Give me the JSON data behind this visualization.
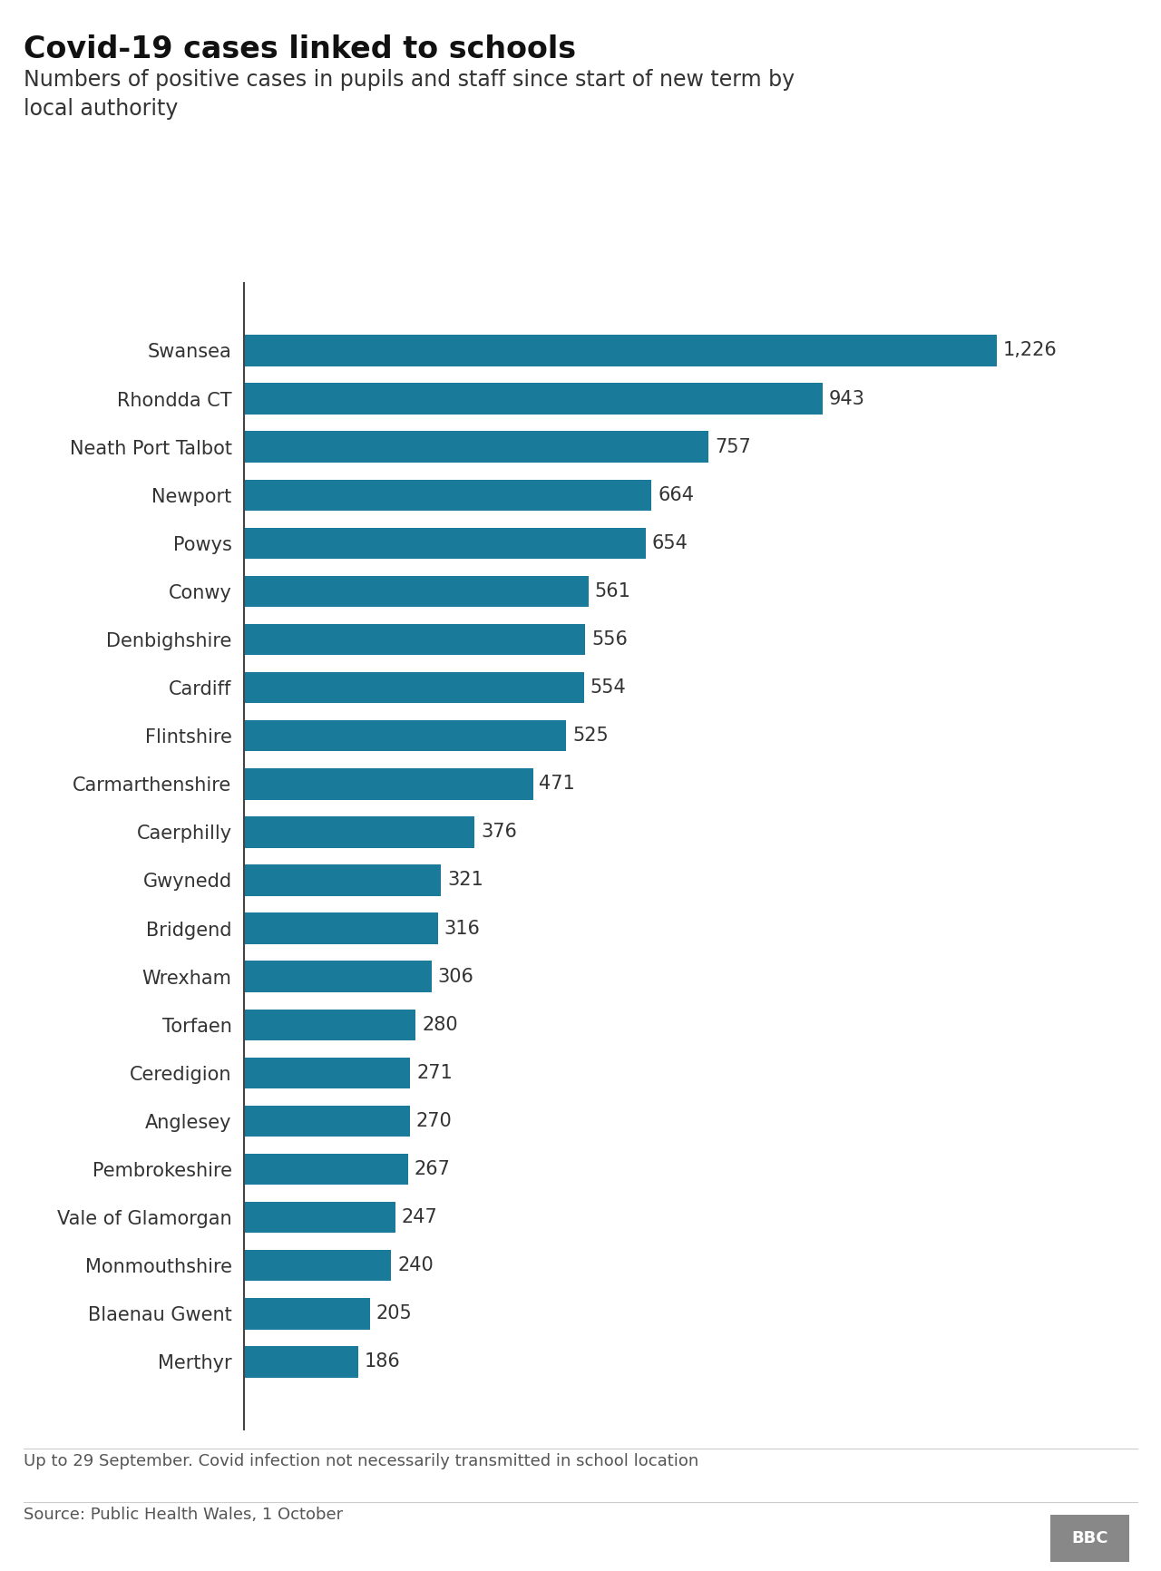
{
  "title": "Covid-19 cases linked to schools",
  "subtitle": "Numbers of positive cases in pupils and staff since start of new term by\nlocal authority",
  "footnote": "Up to 29 September. Covid infection not necessarily transmitted in school location",
  "source": "Source: Public Health Wales, 1 October",
  "bbc_label": "BBC",
  "categories": [
    "Swansea",
    "Rhondda CT",
    "Neath Port Talbot",
    "Newport",
    "Powys",
    "Conwy",
    "Denbighshire",
    "Cardiff",
    "Flintshire",
    "Carmarthenshire",
    "Caerphilly",
    "Gwynedd",
    "Bridgend",
    "Wrexham",
    "Torfaen",
    "Ceredigion",
    "Anglesey",
    "Pembrokeshire",
    "Vale of Glamorgan",
    "Monmouthshire",
    "Blaenau Gwent",
    "Merthyr"
  ],
  "values": [
    1226,
    943,
    757,
    664,
    654,
    561,
    556,
    554,
    525,
    471,
    376,
    321,
    316,
    306,
    280,
    271,
    270,
    267,
    247,
    240,
    205,
    186
  ],
  "bar_color": "#1a7a9a",
  "value_labels": [
    "1,226",
    "943",
    "757",
    "664",
    "654",
    "561",
    "556",
    "554",
    "525",
    "471",
    "376",
    "321",
    "316",
    "306",
    "280",
    "271",
    "270",
    "267",
    "247",
    "240",
    "205",
    "186"
  ],
  "background_color": "#ffffff",
  "title_fontsize": 24,
  "subtitle_fontsize": 17,
  "label_fontsize": 15,
  "value_fontsize": 15,
  "footnote_fontsize": 13,
  "source_fontsize": 13
}
